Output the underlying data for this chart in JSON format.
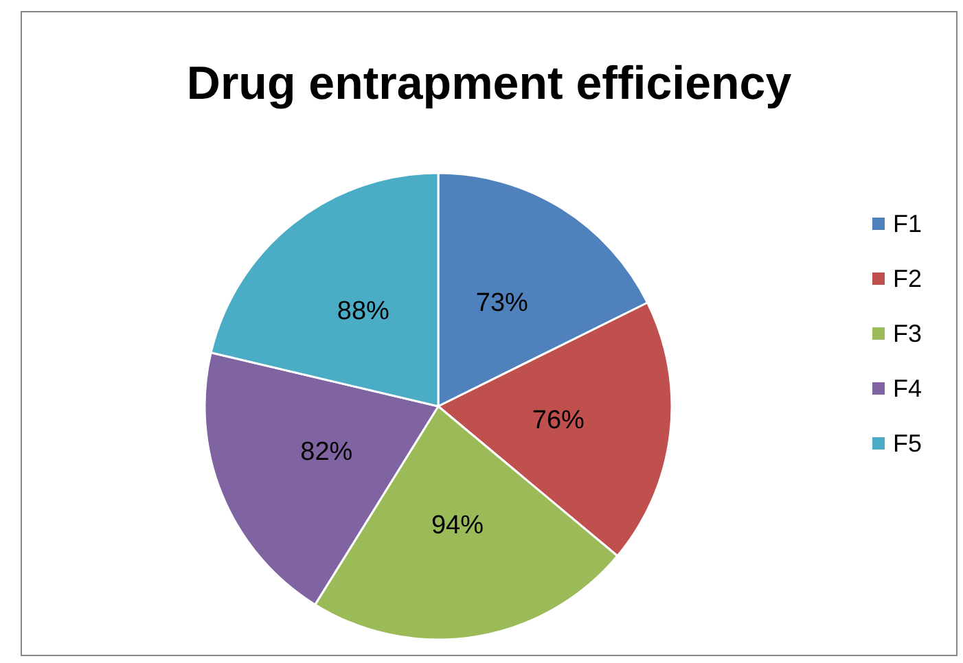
{
  "chart_data": {
    "type": "pie",
    "title": "Drug entrapment efficiency",
    "categories": [
      "F1",
      "F2",
      "F3",
      "F4",
      "F5"
    ],
    "values": [
      73,
      76,
      94,
      82,
      88
    ],
    "value_labels": [
      "73%",
      "76%",
      "94%",
      "82%",
      "88%"
    ],
    "colors": [
      "#4f81bd",
      "#c0504d",
      "#9bbb59",
      "#8064a2",
      "#4bacc6"
    ],
    "legend": "right"
  }
}
